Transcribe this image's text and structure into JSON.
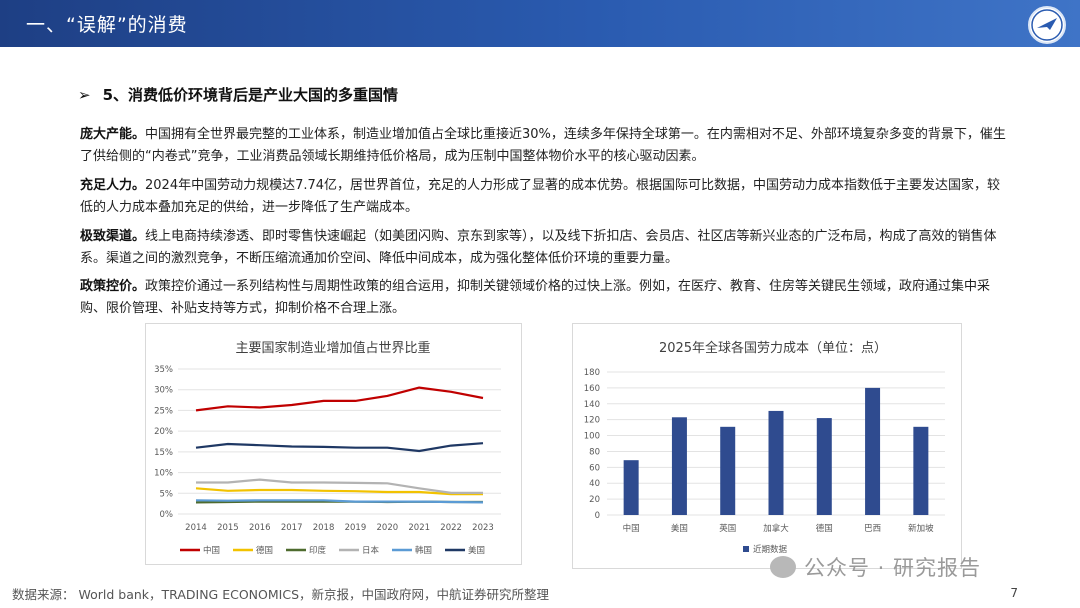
{
  "header": {
    "title": "一、“误解”的消费"
  },
  "section": {
    "arrow": "➢",
    "title": "5、消费低价环境背后是产业大国的多重国情"
  },
  "paragraphs": [
    {
      "lead": "庞大产能。",
      "text": "中国拥有全世界最完整的工业体系，制造业增加值占全球比重接近30%，连续多年保持全球第一。在内需相对不足、外部环境复杂多变的背景下，催生了供给侧的“内卷式”竞争，工业消费品领域长期维持低价格局，成为压制中国整体物价水平的核心驱动因素。"
    },
    {
      "lead": "充足人力。",
      "text": "2024年中国劳动力规模达7.74亿，居世界首位，充足的人力形成了显著的成本优势。根据国际可比数据，中国劳动力成本指数低于主要发达国家，较低的人力成本叠加充足的供给，进一步降低了生产端成本。"
    },
    {
      "lead": "极致渠道。",
      "text": "线上电商持续渗透、即时零售快速崛起（如美团闪购、京东到家等），以及线下折扣店、会员店、社区店等新兴业态的广泛布局，构成了高效的销售体系。渠道之间的激烈竞争，不断压缩流通加价空间、降低中间成本，成为强化整体低价环境的重要力量。"
    },
    {
      "lead": "政策控价。",
      "text": "政策控价通过一系列结构性与周期性政策的组合运用，抑制关键领域价格的过快上涨。例如，在医疗、教育、住房等关键民生领域，政府通过集中采购、限价管理、补贴支持等方式，抑制价格不合理上涨。"
    }
  ],
  "chart_data": [
    {
      "type": "line",
      "title": "主要国家制造业增加值占世界比重",
      "x": [
        "2014",
        "2015",
        "2016",
        "2017",
        "2018",
        "2019",
        "2020",
        "2021",
        "2022",
        "2023"
      ],
      "ylim": [
        0,
        35
      ],
      "yticks": [
        "0%",
        "5%",
        "10%",
        "15%",
        "20%",
        "25%",
        "30%",
        "35%"
      ],
      "ytick_values": [
        0,
        5,
        10,
        15,
        20,
        25,
        30,
        35
      ],
      "grid": true,
      "legend": "bottom",
      "series": [
        {
          "name": "中国",
          "color": "#c00000",
          "values": [
            25.0,
            26.0,
            25.7,
            26.3,
            27.3,
            27.3,
            28.5,
            30.5,
            29.5,
            28.0
          ]
        },
        {
          "name": "德国",
          "color": "#f2c200",
          "values": [
            6.2,
            5.6,
            5.8,
            5.8,
            5.6,
            5.5,
            5.3,
            5.3,
            4.8,
            4.8
          ]
        },
        {
          "name": "印度",
          "color": "#4e6b2e",
          "values": [
            2.8,
            2.9,
            3.0,
            3.0,
            3.0,
            3.0,
            2.9,
            3.0,
            2.9,
            2.9
          ]
        },
        {
          "name": "日本",
          "color": "#b3b3b3",
          "values": [
            7.6,
            7.6,
            8.3,
            7.6,
            7.6,
            7.5,
            7.4,
            6.2,
            5.1,
            5.1
          ]
        },
        {
          "name": "韩国",
          "color": "#5b9bd5",
          "values": [
            3.3,
            3.2,
            3.3,
            3.3,
            3.3,
            3.0,
            3.0,
            3.0,
            2.9,
            2.8
          ]
        },
        {
          "name": "美国",
          "color": "#1f3864",
          "values": [
            16.0,
            16.9,
            16.6,
            16.3,
            16.2,
            16.0,
            16.0,
            15.2,
            16.5,
            17.1
          ]
        }
      ]
    },
    {
      "type": "bar",
      "title": "2025年全球各国劳力成本（单位：点）",
      "categories": [
        "中国",
        "美国",
        "英国",
        "加拿大",
        "德国",
        "巴西",
        "新加坡"
      ],
      "values": [
        69,
        123,
        111,
        131,
        122,
        160,
        111
      ],
      "color": "#2f4b8f",
      "ylim": [
        0,
        180
      ],
      "yticks": [
        "0",
        "20",
        "40",
        "60",
        "80",
        "100",
        "120",
        "140",
        "160",
        "180"
      ],
      "ytick_values": [
        0,
        20,
        40,
        60,
        80,
        100,
        120,
        140,
        160,
        180
      ],
      "legend": "近期数据",
      "grid": true
    }
  ],
  "footer": {
    "source": "数据来源： World bank，TRADING ECONOMICS，新京报，中国政府网，中航证券研究所整理",
    "page": "7",
    "watermark": "公众号 · 研究报告"
  }
}
